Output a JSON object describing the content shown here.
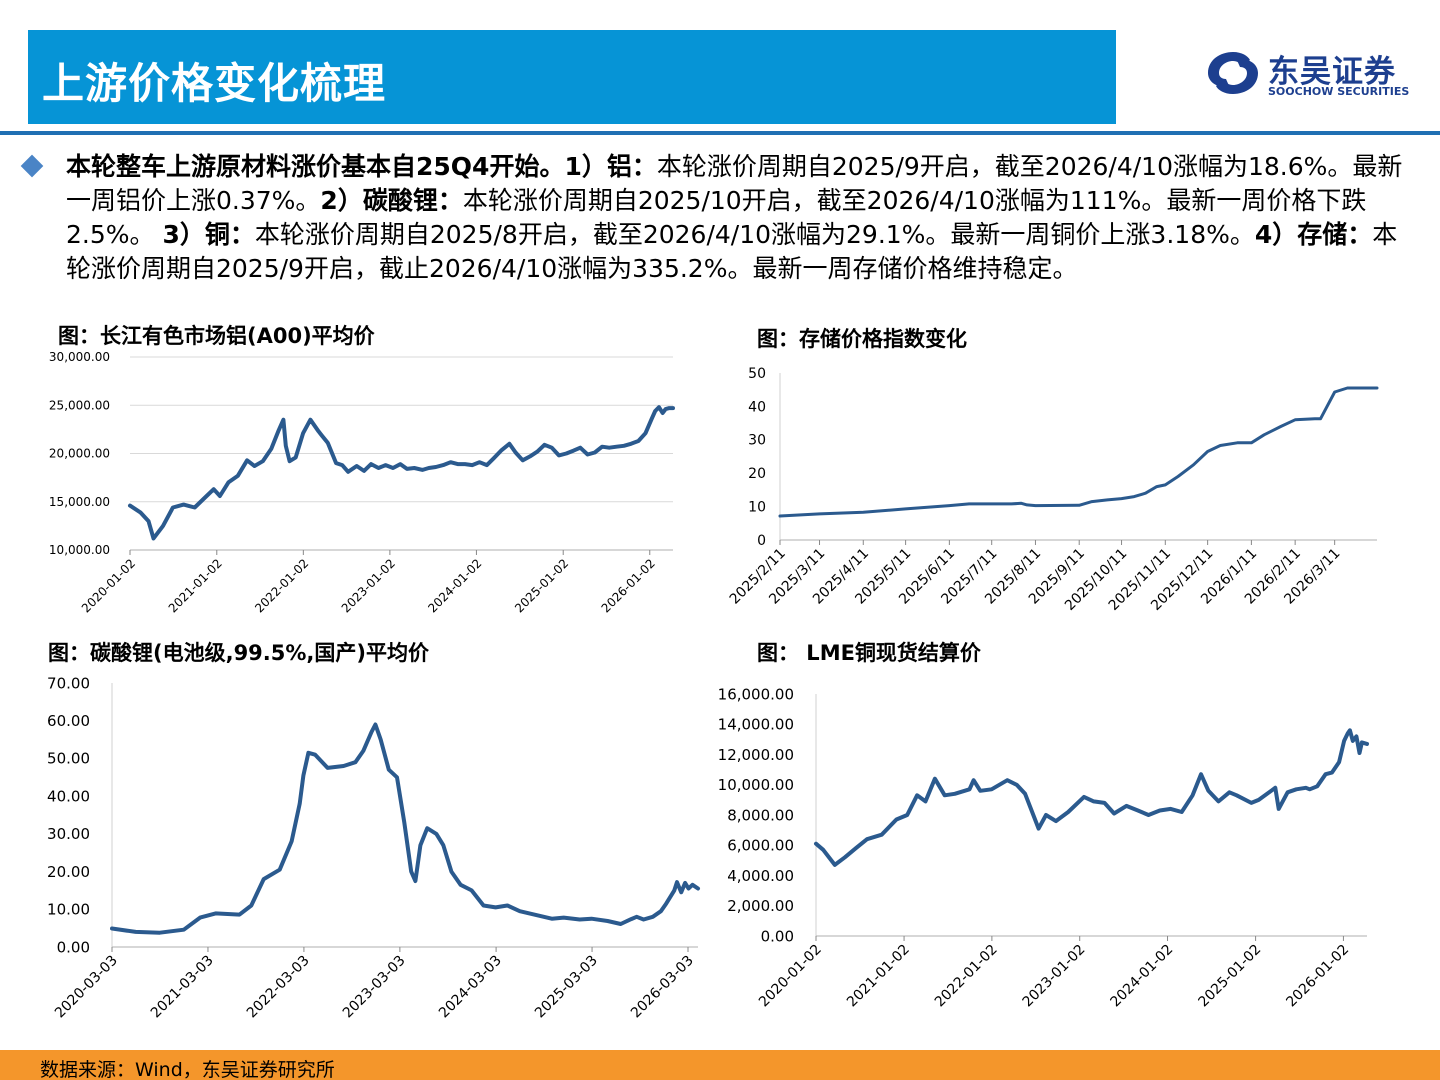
{
  "header": {
    "title": "上游价格变化梳理",
    "logo_cn": "东吴证券",
    "logo_en": "SOOCHOW SECURITIES"
  },
  "summary": {
    "intro": "本轮整车上游原材料涨价基本自25Q4开始。",
    "items": [
      {
        "label": "1）铝：",
        "text": "本轮涨价周期自2025/9开启，截至2026/4/10涨幅为18.6%。最新一周铝价上涨0.37%。"
      },
      {
        "label": "2）碳酸锂：",
        "text": "本轮涨价周期自2025/10开启，截至2026/4/10涨幅为111%。最新一周价格下跌2.5%。 "
      },
      {
        "label": "3）铜：",
        "text": "本轮涨价周期自2025/8开启，截至2026/4/10涨幅为29.1%。最新一周铜价上涨3.18%。"
      },
      {
        "label": "4）存储：",
        "text": "本轮涨价周期自2025/9开启，截止2026/4/10涨幅为335.2%。最新一周存储价格维持稳定。"
      }
    ]
  },
  "footer": {
    "source": "数据来源：Wind，东吴证券研究所"
  },
  "colors": {
    "header": "#0694d6",
    "line": "#2b5a8e",
    "footer": "#f4962b",
    "logo": "#1d3f8f",
    "rule": "#1f6fb3"
  },
  "chart_data": [
    {
      "id": "aluminum",
      "type": "line",
      "title": "图：长江有色市场铝(A00)平均价",
      "x_type": "date",
      "x_ticks": [
        "2020-01-02",
        "2021-01-02",
        "2022-01-02",
        "2023-01-02",
        "2024-01-02",
        "2025-01-02",
        "2026-01-02"
      ],
      "xlim": [
        "2020-01-02",
        "2026-04-10"
      ],
      "ylim": [
        10000,
        30000
      ],
      "y_ticks": [
        "10,000.00",
        "15,000.00",
        "20,000.00",
        "25,000.00",
        "30,000.00"
      ],
      "y_tick_values": [
        10000,
        15000,
        20000,
        25000,
        30000
      ],
      "grid": true,
      "series": [
        {
          "x": [
            "2020-01-02",
            "2020-02-15",
            "2020-03-20",
            "2020-04-10",
            "2020-05-20",
            "2020-07-01",
            "2020-08-15",
            "2020-10-01",
            "2020-11-20",
            "2020-12-20",
            "2021-01-15",
            "2021-02-20",
            "2021-04-01",
            "2021-05-10",
            "2021-06-10",
            "2021-07-15",
            "2021-08-20",
            "2021-09-20",
            "2021-10-10",
            "2021-10-20",
            "2021-11-05",
            "2021-12-01",
            "2022-01-01",
            "2022-02-01",
            "2022-03-07",
            "2022-03-20",
            "2022-04-15",
            "2022-05-20",
            "2022-06-15",
            "2022-07-10",
            "2022-08-15",
            "2022-09-15",
            "2022-10-15",
            "2022-11-15",
            "2022-12-15",
            "2023-01-15",
            "2023-02-15",
            "2023-03-15",
            "2023-04-15",
            "2023-05-20",
            "2023-06-15",
            "2023-07-15",
            "2023-08-15",
            "2023-09-15",
            "2023-10-15",
            "2023-11-15",
            "2023-12-15",
            "2024-01-15",
            "2024-02-15",
            "2024-03-15",
            "2024-04-15",
            "2024-05-20",
            "2024-06-15",
            "2024-07-15",
            "2024-08-15",
            "2024-09-15",
            "2024-10-15",
            "2024-11-15",
            "2024-12-15",
            "2025-01-15",
            "2025-02-15",
            "2025-03-15",
            "2025-04-15",
            "2025-05-15",
            "2025-06-15",
            "2025-07-15",
            "2025-08-15",
            "2025-09-15",
            "2025-10-15",
            "2025-11-15",
            "2025-12-15",
            "2026-01-10",
            "2026-01-25",
            "2026-02-10",
            "2026-02-25",
            "2026-03-10",
            "2026-03-25",
            "2026-04-10"
          ],
          "y": [
            14600,
            13900,
            13000,
            11200,
            12500,
            14400,
            14700,
            14400,
            15600,
            16300,
            15600,
            17000,
            17700,
            19300,
            18700,
            19200,
            20500,
            22400,
            23500,
            20800,
            19200,
            19600,
            22100,
            23500,
            22300,
            21900,
            21100,
            19000,
            18800,
            18100,
            18700,
            18200,
            18900,
            18500,
            18800,
            18500,
            18900,
            18400,
            18500,
            18300,
            18500,
            18600,
            18800,
            19100,
            18900,
            18900,
            18800,
            19100,
            18800,
            19500,
            20300,
            21000,
            20100,
            19300,
            19700,
            20200,
            20900,
            20600,
            19800,
            20000,
            20300,
            20600,
            19900,
            20100,
            20700,
            20600,
            20700,
            20800,
            21000,
            21300,
            22100,
            23600,
            24400,
            24800,
            24200,
            24600,
            24700,
            24700
          ]
        }
      ]
    },
    {
      "id": "storage",
      "type": "line",
      "title": "图：存储价格指数变化",
      "x_type": "date",
      "x_ticks": [
        "2025/2/11",
        "2025/3/11",
        "2025/4/11",
        "2025/5/11",
        "2025/6/11",
        "2025/7/11",
        "2025/8/11",
        "2025/9/11",
        "2025/10/11",
        "2025/11/11",
        "2025/12/11",
        "2026/1/11",
        "2026/2/11",
        "2026/3/11"
      ],
      "xlim": [
        "2025-02-11",
        "2026-04-10"
      ],
      "ylim": [
        0,
        50
      ],
      "y_ticks": [
        "0",
        "10",
        "20",
        "30",
        "40",
        "50"
      ],
      "y_tick_values": [
        0,
        10,
        20,
        30,
        40,
        50
      ],
      "grid": false,
      "series": [
        {
          "x": [
            "2025-02-11",
            "2025-03-11",
            "2025-04-11",
            "2025-05-11",
            "2025-06-11",
            "2025-06-25",
            "2025-07-11",
            "2025-07-25",
            "2025-08-01",
            "2025-08-05",
            "2025-08-11",
            "2025-09-11",
            "2025-09-20",
            "2025-10-01",
            "2025-10-11",
            "2025-10-20",
            "2025-10-28",
            "2025-11-05",
            "2025-11-11",
            "2025-11-20",
            "2025-12-01",
            "2025-12-11",
            "2025-12-20",
            "2026-01-01",
            "2026-01-11",
            "2026-01-20",
            "2026-02-01",
            "2026-02-11",
            "2026-02-25",
            "2026-03-01",
            "2026-03-11",
            "2026-03-20",
            "2026-04-10"
          ],
          "y": [
            7.2,
            7.8,
            8.3,
            9.3,
            10.3,
            10.8,
            10.8,
            10.8,
            11.0,
            10.5,
            10.3,
            10.4,
            11.5,
            12.0,
            12.4,
            13.0,
            14.0,
            16.0,
            16.5,
            19.0,
            22.5,
            26.5,
            28.3,
            29.1,
            29.1,
            31.5,
            34.0,
            36.0,
            36.3,
            36.3,
            44.3,
            45.5,
            45.5
          ]
        }
      ]
    },
    {
      "id": "lithium",
      "type": "line",
      "title": "图：碳酸锂(电池级,99.5%,国产)平均价",
      "x_type": "date",
      "x_ticks": [
        "2020-03-03",
        "2021-03-03",
        "2022-03-03",
        "2023-03-03",
        "2024-03-03",
        "2025-03-03",
        "2026-03-03"
      ],
      "xlim": [
        "2020-03-03",
        "2026-04-10"
      ],
      "ylim": [
        0,
        70
      ],
      "y_ticks": [
        "0.00",
        "10.00",
        "20.00",
        "30.00",
        "40.00",
        "50.00",
        "60.00",
        "70.00"
      ],
      "y_tick_values": [
        0,
        10,
        20,
        30,
        40,
        50,
        60,
        70
      ],
      "grid": false,
      "series": [
        {
          "x": [
            "2020-03-03",
            "2020-06-01",
            "2020-09-01",
            "2020-12-01",
            "2021-02-01",
            "2021-04-01",
            "2021-07-01",
            "2021-08-15",
            "2021-10-01",
            "2021-12-01",
            "2022-01-15",
            "2022-02-15",
            "2022-03-01",
            "2022-03-20",
            "2022-04-15",
            "2022-06-01",
            "2022-08-01",
            "2022-09-15",
            "2022-10-15",
            "2022-11-15",
            "2022-11-30",
            "2022-12-20",
            "2023-01-20",
            "2023-02-20",
            "2023-03-20",
            "2023-04-15",
            "2023-05-01",
            "2023-05-20",
            "2023-06-15",
            "2023-07-20",
            "2023-08-15",
            "2023-09-15",
            "2023-10-20",
            "2023-12-01",
            "2024-01-15",
            "2024-03-01",
            "2024-04-15",
            "2024-06-01",
            "2024-08-01",
            "2024-10-01",
            "2024-11-15",
            "2025-01-15",
            "2025-03-01",
            "2025-05-01",
            "2025-06-20",
            "2025-07-30",
            "2025-08-20",
            "2025-09-15",
            "2025-10-20",
            "2025-11-20",
            "2025-12-10",
            "2026-01-10",
            "2026-01-20",
            "2026-02-05",
            "2026-02-20",
            "2026-03-05",
            "2026-03-20",
            "2026-04-10"
          ],
          "y": [
            4.9,
            4.0,
            3.8,
            4.6,
            7.8,
            8.9,
            8.6,
            11.0,
            18.0,
            20.5,
            28.0,
            38.0,
            45.5,
            51.5,
            51.0,
            47.5,
            48.0,
            49.0,
            52.0,
            57.0,
            59.0,
            55.0,
            47.0,
            45.0,
            33.0,
            20.0,
            17.5,
            27.0,
            31.5,
            30.0,
            27.0,
            20.0,
            16.5,
            15.0,
            11.0,
            10.5,
            11.0,
            9.5,
            8.5,
            7.5,
            7.8,
            7.3,
            7.5,
            6.9,
            6.1,
            7.4,
            8.0,
            7.3,
            8.0,
            9.5,
            11.5,
            15.0,
            17.2,
            14.5,
            17.0,
            15.5,
            16.5,
            15.5
          ]
        }
      ]
    },
    {
      "id": "copper",
      "type": "line",
      "title": "图：  LME铜现货结算价",
      "x_type": "date",
      "x_ticks": [
        "2020-01-02",
        "2021-01-02",
        "2022-01-02",
        "2023-01-02",
        "2024-01-02",
        "2025-01-02",
        "2026-01-02"
      ],
      "xlim": [
        "2020-01-02",
        "2026-04-10"
      ],
      "ylim": [
        0,
        16000
      ],
      "y_ticks": [
        "0.00",
        "2,000.00",
        "4,000.00",
        "6,000.00",
        "8,000.00",
        "10,000.00",
        "12,000.00",
        "14,000.00",
        "16,000.00"
      ],
      "y_tick_values": [
        0,
        2000,
        4000,
        6000,
        8000,
        10000,
        12000,
        14000,
        16000
      ],
      "grid": false,
      "series": [
        {
          "x": [
            "2020-01-02",
            "2020-02-01",
            "2020-03-20",
            "2020-05-01",
            "2020-06-15",
            "2020-08-01",
            "2020-10-01",
            "2020-12-01",
            "2021-01-15",
            "2021-02-25",
            "2021-04-01",
            "2021-05-10",
            "2021-06-20",
            "2021-08-01",
            "2021-10-01",
            "2021-10-18",
            "2021-11-15",
            "2022-01-01",
            "2022-03-07",
            "2022-04-15",
            "2022-05-20",
            "2022-07-15",
            "2022-08-15",
            "2022-09-25",
            "2022-11-15",
            "2023-01-20",
            "2023-03-01",
            "2023-04-15",
            "2023-05-25",
            "2023-07-15",
            "2023-09-01",
            "2023-10-15",
            "2023-12-01",
            "2024-01-15",
            "2024-03-01",
            "2024-04-15",
            "2024-05-20",
            "2024-06-20",
            "2024-08-01",
            "2024-09-15",
            "2024-10-15",
            "2024-12-15",
            "2025-01-15",
            "2025-03-25",
            "2025-04-08",
            "2025-05-15",
            "2025-06-20",
            "2025-07-30",
            "2025-08-15",
            "2025-09-15",
            "2025-10-20",
            "2025-11-15",
            "2025-12-15",
            "2026-01-05",
            "2026-01-20",
            "2026-01-29",
            "2026-02-10",
            "2026-02-25",
            "2026-03-10",
            "2026-03-20",
            "2026-04-10"
          ],
          "y": [
            6100,
            5700,
            4700,
            5200,
            5800,
            6400,
            6700,
            7700,
            8000,
            9300,
            8900,
            10400,
            9300,
            9400,
            9700,
            10300,
            9600,
            9700,
            10300,
            10000,
            9400,
            7100,
            8000,
            7600,
            8200,
            9200,
            8900,
            8800,
            8100,
            8600,
            8300,
            8000,
            8300,
            8400,
            8200,
            9300,
            10700,
            9600,
            8900,
            9500,
            9300,
            8800,
            9000,
            9800,
            8400,
            9500,
            9700,
            9800,
            9700,
            9900,
            10700,
            10800,
            11500,
            12900,
            13400,
            13600,
            12900,
            13200,
            12100,
            12800,
            12700
          ]
        }
      ]
    }
  ]
}
